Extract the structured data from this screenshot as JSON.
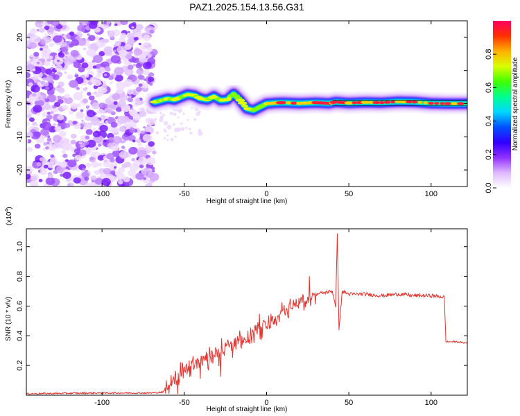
{
  "title": "PAZ1.2025.154.13.56.G31",
  "chart_data": [
    {
      "type": "heatmap",
      "xlabel": "Height of straight line (km)",
      "ylabel": "Frequency (Hz)",
      "xlim": [
        -146,
        122
      ],
      "ylim": [
        -25,
        25
      ],
      "xticks": [
        -100,
        -50,
        0,
        50,
        100
      ],
      "yticks": [
        20,
        10,
        0,
        -10,
        -20
      ],
      "colorbar": {
        "label": "Normalized spectral amplitude",
        "range": [
          0,
          1
        ],
        "ticks": [
          "0.0",
          "0.2",
          "0.4",
          "0.6",
          "0.8"
        ],
        "colors": [
          "#ffffff",
          "#e0b8ff",
          "#9030ff",
          "#3000ff",
          "#0050ff",
          "#00d8ff",
          "#00ff90",
          "#40ff00",
          "#d8ff00",
          "#ffb000",
          "#ff3000",
          "#ff0060"
        ]
      },
      "noise_region_x": [
        -146,
        -68
      ],
      "ridge": {
        "x": [
          -68,
          -64,
          -60,
          -56,
          -52,
          -48,
          -44,
          -40,
          -36,
          -32,
          -28,
          -24,
          -20,
          -16,
          -12,
          -8,
          -4,
          0,
          5,
          10,
          20,
          30,
          38,
          42,
          50,
          60,
          70,
          80,
          90,
          100,
          110,
          122
        ],
        "y": [
          0.5,
          1.0,
          1.5,
          1.2,
          2.0,
          2.8,
          2.5,
          1.5,
          1.2,
          2.2,
          1.0,
          1.2,
          3.0,
          1.0,
          -1.5,
          -2.0,
          -1.0,
          0.0,
          0.2,
          0.3,
          0.1,
          0.3,
          0.1,
          0.5,
          0.2,
          0.4,
          0.3,
          0.6,
          0.5,
          0.1,
          0.0,
          0.0
        ]
      }
    },
    {
      "type": "line",
      "xlabel": "Height of straight line (km)",
      "ylabel": "SNR (10 * v/v)",
      "y_multiplier": "(x10",
      "y_multiplier_exp": "4",
      "xlim": [
        -146,
        122
      ],
      "ylim": [
        0,
        1.12
      ],
      "xticks": [
        -100,
        -50,
        0,
        50,
        100
      ],
      "yticks": [
        "0.2",
        "0.4",
        "0.6",
        "0.8",
        "1.0"
      ],
      "series": [
        {
          "color": "#e8322d",
          "x": [
            -146,
            -100,
            -70,
            -63,
            -60,
            -55,
            -50,
            -45,
            -40,
            -35,
            -30,
            -25,
            -20,
            -15,
            -10,
            -5,
            0,
            5,
            10,
            15,
            20,
            25,
            28,
            30,
            35,
            40,
            42,
            43,
            44,
            46,
            50,
            60,
            70,
            80,
            90,
            100,
            108,
            109,
            110,
            115,
            122
          ],
          "y": [
            0.01,
            0.015,
            0.015,
            0.02,
            0.06,
            0.12,
            0.18,
            0.2,
            0.24,
            0.27,
            0.29,
            0.32,
            0.34,
            0.36,
            0.4,
            0.44,
            0.48,
            0.52,
            0.56,
            0.6,
            0.62,
            0.64,
            0.67,
            0.68,
            0.69,
            0.7,
            0.6,
            1.08,
            0.45,
            0.7,
            0.68,
            0.68,
            0.67,
            0.68,
            0.67,
            0.67,
            0.66,
            0.36,
            0.36,
            0.36,
            0.35
          ]
        }
      ]
    }
  ]
}
